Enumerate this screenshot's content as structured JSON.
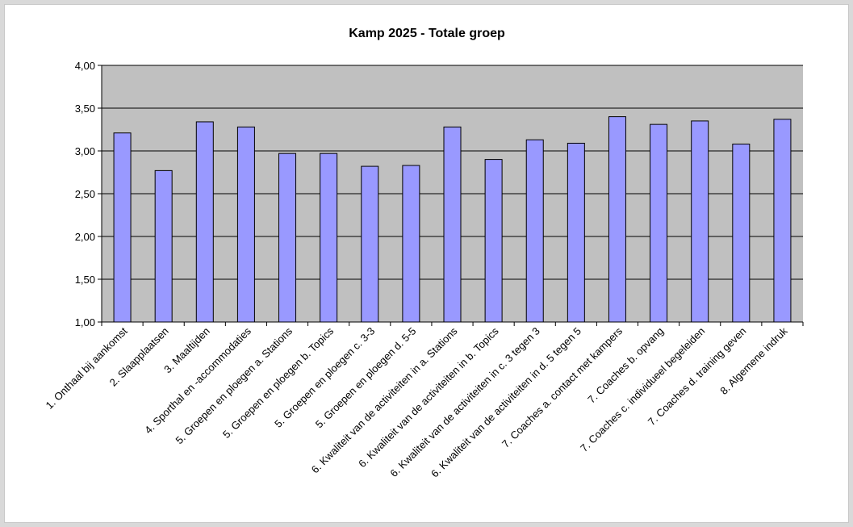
{
  "chart_data": {
    "type": "bar",
    "title": "Kamp 2025 - Totale groep",
    "xlabel": "",
    "ylabel": "",
    "ylim": [
      1.0,
      4.0
    ],
    "yticks": [
      "1,00",
      "1,50",
      "2,00",
      "2,50",
      "3,00",
      "3,50",
      "4,00"
    ],
    "grid": true,
    "legend": "none",
    "categories": [
      "1. Onthaal bij aankomst",
      "2. Slaapplaatsen",
      "3. Maaltijden",
      "4. Sporthal en -accommodaties",
      "5. Groepen en ploegen a. Stations",
      "5. Groepen en ploegen b. Topics",
      "5. Groepen en ploegen c. 3-3",
      "5. Groepen en ploegen d. 5-5",
      "6. Kwaliteit van de activiteiten in  a. Stations",
      "6. Kwaliteit van de activiteiten in  b. Topics",
      "6. Kwaliteit van de activiteiten in  c. 3 tegen 3",
      "6. Kwaliteit van de activiteiten in  d. 5 tegen 5",
      "7. Coaches a. contact met kampers",
      "7. Coaches b. opvang",
      "7. Coaches c. individueel begeleiden",
      "7. Coaches d. training geven",
      "8. Algemene indruk"
    ],
    "values": [
      3.21,
      2.77,
      3.34,
      3.28,
      2.97,
      2.97,
      2.82,
      2.83,
      3.28,
      2.9,
      3.13,
      3.09,
      3.4,
      3.31,
      3.35,
      3.08,
      3.37
    ],
    "colors": {
      "bar_fill": "#9999ff",
      "bar_stroke": "#000000",
      "plot_background": "#c0c0c0",
      "gridline": "#000000"
    }
  }
}
